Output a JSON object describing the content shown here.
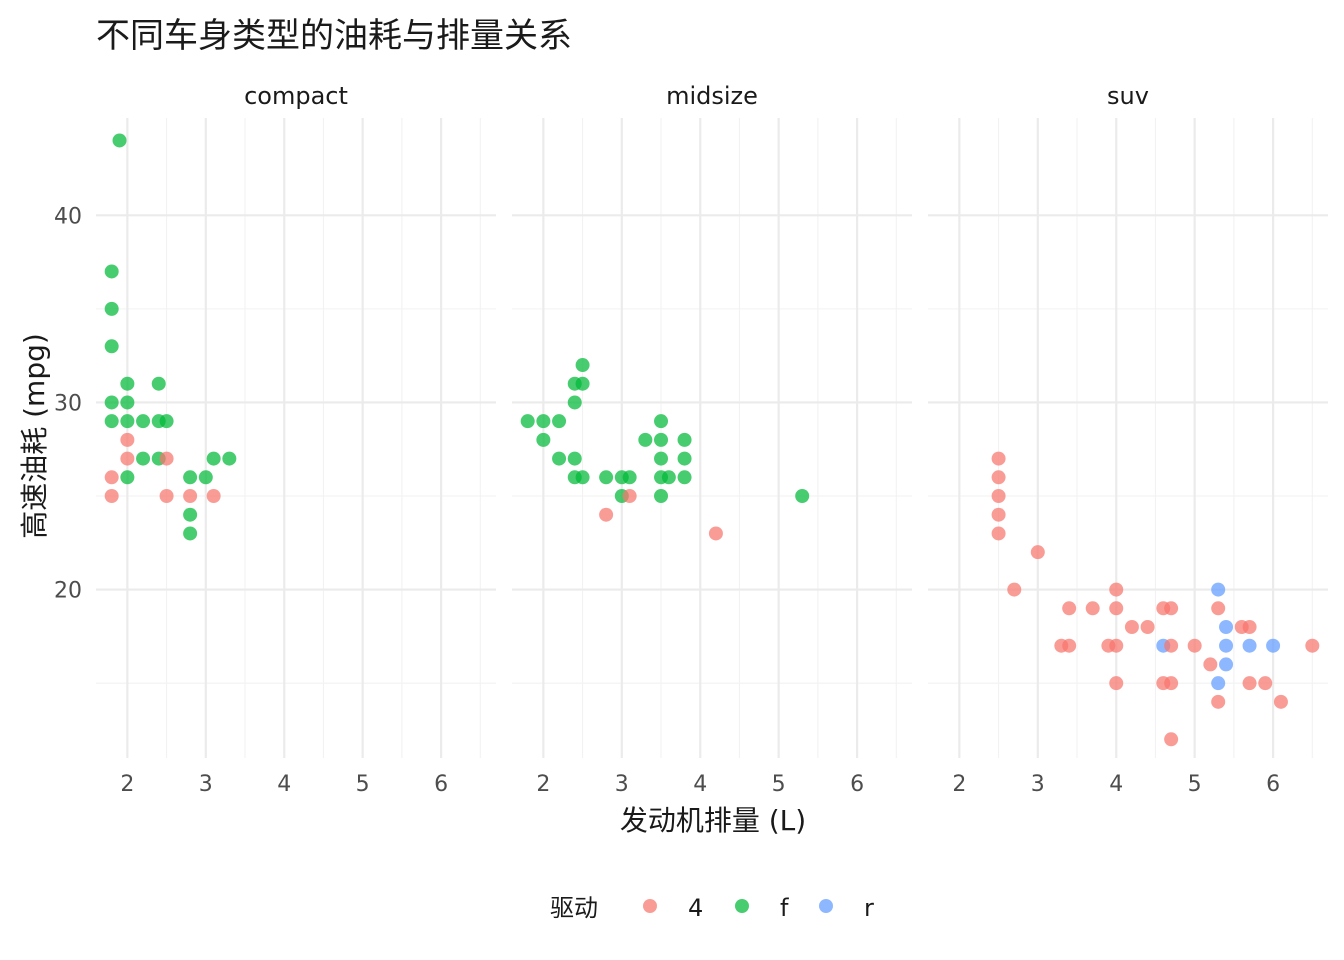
{
  "chart_data": {
    "type": "scatter",
    "title": "不同车身类型的油耗与排量关系",
    "xlabel": "发动机排量 (L)",
    "ylabel": "高速油耗 (mpg)",
    "xlim": [
      1.6,
      6.7
    ],
    "ylim": [
      11,
      45.2
    ],
    "x_ticks": [
      2,
      3,
      4,
      5,
      6
    ],
    "y_ticks": [
      20,
      30,
      40
    ],
    "legend": {
      "title": "驱动",
      "position": "bottom",
      "entries": [
        {
          "key": "4",
          "label": "4",
          "color": "#F8766D"
        },
        {
          "key": "f",
          "label": "f",
          "color": "#00BA38"
        },
        {
          "key": "r",
          "label": "r",
          "color": "#619CFF"
        }
      ]
    },
    "facets": [
      {
        "label": "compact",
        "points": [
          {
            "x": 1.9,
            "y": 44,
            "drv": "f"
          },
          {
            "x": 1.8,
            "y": 37,
            "drv": "f"
          },
          {
            "x": 1.8,
            "y": 35,
            "drv": "f"
          },
          {
            "x": 1.8,
            "y": 33,
            "drv": "f"
          },
          {
            "x": 2.0,
            "y": 31,
            "drv": "f"
          },
          {
            "x": 2.4,
            "y": 31,
            "drv": "f"
          },
          {
            "x": 1.8,
            "y": 30,
            "drv": "f"
          },
          {
            "x": 2.0,
            "y": 30,
            "drv": "f"
          },
          {
            "x": 1.8,
            "y": 29,
            "drv": "f"
          },
          {
            "x": 2.0,
            "y": 29,
            "drv": "f"
          },
          {
            "x": 2.2,
            "y": 29,
            "drv": "f"
          },
          {
            "x": 2.4,
            "y": 29,
            "drv": "f"
          },
          {
            "x": 2.5,
            "y": 29,
            "drv": "f"
          },
          {
            "x": 2.0,
            "y": 28,
            "drv": "4"
          },
          {
            "x": 2.0,
            "y": 27,
            "drv": "4"
          },
          {
            "x": 2.2,
            "y": 27,
            "drv": "f"
          },
          {
            "x": 2.4,
            "y": 27,
            "drv": "f"
          },
          {
            "x": 2.5,
            "y": 27,
            "drv": "4"
          },
          {
            "x": 3.1,
            "y": 27,
            "drv": "f"
          },
          {
            "x": 3.3,
            "y": 27,
            "drv": "f"
          },
          {
            "x": 1.8,
            "y": 26,
            "drv": "4"
          },
          {
            "x": 2.0,
            "y": 26,
            "drv": "f"
          },
          {
            "x": 2.8,
            "y": 26,
            "drv": "f"
          },
          {
            "x": 3.0,
            "y": 26,
            "drv": "f"
          },
          {
            "x": 1.8,
            "y": 25,
            "drv": "4"
          },
          {
            "x": 2.5,
            "y": 25,
            "drv": "4"
          },
          {
            "x": 2.8,
            "y": 25,
            "drv": "4"
          },
          {
            "x": 3.1,
            "y": 25,
            "drv": "4"
          },
          {
            "x": 2.8,
            "y": 24,
            "drv": "f"
          },
          {
            "x": 2.8,
            "y": 23,
            "drv": "f"
          }
        ]
      },
      {
        "label": "midsize",
        "points": [
          {
            "x": 1.8,
            "y": 29,
            "drv": "f"
          },
          {
            "x": 2.0,
            "y": 29,
            "drv": "f"
          },
          {
            "x": 2.2,
            "y": 29,
            "drv": "f"
          },
          {
            "x": 2.0,
            "y": 28,
            "drv": "f"
          },
          {
            "x": 2.2,
            "y": 27,
            "drv": "f"
          },
          {
            "x": 2.5,
            "y": 32,
            "drv": "f"
          },
          {
            "x": 2.4,
            "y": 31,
            "drv": "f"
          },
          {
            "x": 2.5,
            "y": 31,
            "drv": "f"
          },
          {
            "x": 2.4,
            "y": 30,
            "drv": "f"
          },
          {
            "x": 2.4,
            "y": 27,
            "drv": "f"
          },
          {
            "x": 2.4,
            "y": 26,
            "drv": "f"
          },
          {
            "x": 2.5,
            "y": 26,
            "drv": "f"
          },
          {
            "x": 2.8,
            "y": 26,
            "drv": "f"
          },
          {
            "x": 3.0,
            "y": 26,
            "drv": "f"
          },
          {
            "x": 3.1,
            "y": 26,
            "drv": "f"
          },
          {
            "x": 3.0,
            "y": 25,
            "drv": "f"
          },
          {
            "x": 3.1,
            "y": 25,
            "drv": "4"
          },
          {
            "x": 2.8,
            "y": 24,
            "drv": "4"
          },
          {
            "x": 3.3,
            "y": 28,
            "drv": "f"
          },
          {
            "x": 3.5,
            "y": 29,
            "drv": "f"
          },
          {
            "x": 3.5,
            "y": 28,
            "drv": "f"
          },
          {
            "x": 3.5,
            "y": 27,
            "drv": "f"
          },
          {
            "x": 3.5,
            "y": 26,
            "drv": "f"
          },
          {
            "x": 3.6,
            "y": 26,
            "drv": "f"
          },
          {
            "x": 3.5,
            "y": 25,
            "drv": "f"
          },
          {
            "x": 3.8,
            "y": 28,
            "drv": "f"
          },
          {
            "x": 3.8,
            "y": 27,
            "drv": "f"
          },
          {
            "x": 3.8,
            "y": 26,
            "drv": "f"
          },
          {
            "x": 4.2,
            "y": 23,
            "drv": "4"
          },
          {
            "x": 5.3,
            "y": 25,
            "drv": "f"
          }
        ]
      },
      {
        "label": "suv",
        "points": [
          {
            "x": 2.5,
            "y": 27,
            "drv": "4"
          },
          {
            "x": 2.5,
            "y": 26,
            "drv": "4"
          },
          {
            "x": 2.5,
            "y": 25,
            "drv": "4"
          },
          {
            "x": 2.5,
            "y": 24,
            "drv": "4"
          },
          {
            "x": 2.5,
            "y": 23,
            "drv": "4"
          },
          {
            "x": 3.0,
            "y": 22,
            "drv": "4"
          },
          {
            "x": 2.7,
            "y": 20,
            "drv": "4"
          },
          {
            "x": 3.4,
            "y": 19,
            "drv": "4"
          },
          {
            "x": 3.7,
            "y": 19,
            "drv": "4"
          },
          {
            "x": 3.3,
            "y": 17,
            "drv": "4"
          },
          {
            "x": 3.4,
            "y": 17,
            "drv": "4"
          },
          {
            "x": 4.0,
            "y": 20,
            "drv": "4"
          },
          {
            "x": 4.0,
            "y": 19,
            "drv": "4"
          },
          {
            "x": 4.0,
            "y": 17,
            "drv": "4"
          },
          {
            "x": 3.9,
            "y": 17,
            "drv": "4"
          },
          {
            "x": 4.0,
            "y": 15,
            "drv": "4"
          },
          {
            "x": 4.2,
            "y": 18,
            "drv": "4"
          },
          {
            "x": 4.4,
            "y": 18,
            "drv": "4"
          },
          {
            "x": 4.6,
            "y": 19,
            "drv": "4"
          },
          {
            "x": 4.7,
            "y": 19,
            "drv": "4"
          },
          {
            "x": 4.6,
            "y": 17,
            "drv": "r"
          },
          {
            "x": 4.7,
            "y": 17,
            "drv": "4"
          },
          {
            "x": 4.6,
            "y": 15,
            "drv": "4"
          },
          {
            "x": 4.7,
            "y": 15,
            "drv": "4"
          },
          {
            "x": 4.7,
            "y": 12,
            "drv": "4"
          },
          {
            "x": 5.0,
            "y": 17,
            "drv": "4"
          },
          {
            "x": 5.2,
            "y": 16,
            "drv": "4"
          },
          {
            "x": 5.3,
            "y": 20,
            "drv": "r"
          },
          {
            "x": 5.3,
            "y": 19,
            "drv": "4"
          },
          {
            "x": 5.3,
            "y": 15,
            "drv": "r"
          },
          {
            "x": 5.3,
            "y": 14,
            "drv": "4"
          },
          {
            "x": 5.4,
            "y": 18,
            "drv": "r"
          },
          {
            "x": 5.4,
            "y": 17,
            "drv": "r"
          },
          {
            "x": 5.4,
            "y": 16,
            "drv": "r"
          },
          {
            "x": 5.6,
            "y": 18,
            "drv": "4"
          },
          {
            "x": 5.7,
            "y": 18,
            "drv": "4"
          },
          {
            "x": 5.7,
            "y": 17,
            "drv": "r"
          },
          {
            "x": 5.7,
            "y": 15,
            "drv": "4"
          },
          {
            "x": 5.9,
            "y": 15,
            "drv": "4"
          },
          {
            "x": 6.0,
            "y": 17,
            "drv": "r"
          },
          {
            "x": 6.1,
            "y": 14,
            "drv": "4"
          },
          {
            "x": 6.5,
            "y": 17,
            "drv": "4"
          }
        ]
      }
    ]
  }
}
